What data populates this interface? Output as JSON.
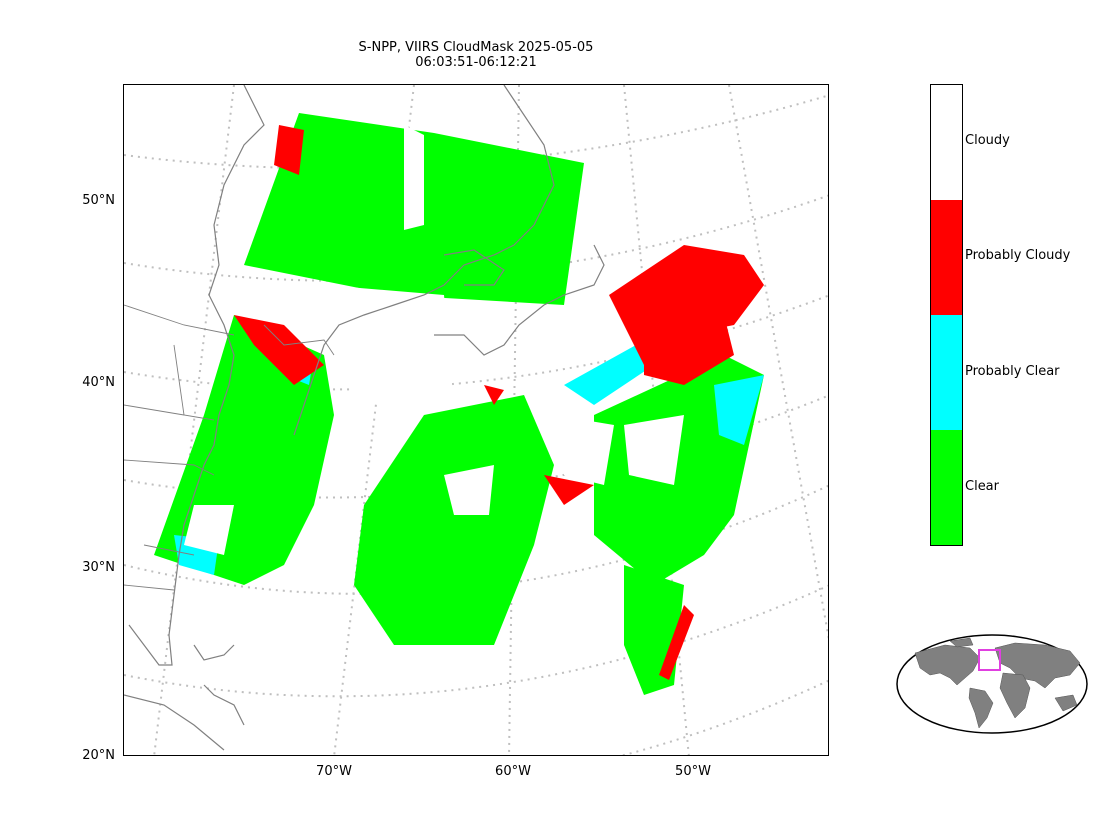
{
  "title": {
    "line1": "S-NPP, VIIRS CloudMask 2025-05-05",
    "line2": "06:03:51-06:12:21"
  },
  "map": {
    "lat_labels": [
      "50°N",
      "40°N",
      "30°N",
      "20°N"
    ],
    "lon_labels": [
      "70°W",
      "60°W",
      "50°W"
    ],
    "projection": "conic",
    "gridlines": "dotted"
  },
  "colorbar": {
    "categories": [
      {
        "label": "Cloudy",
        "color": "#ffffff"
      },
      {
        "label": "Probably Cloudy",
        "color": "#ff0000"
      },
      {
        "label": "Probably Clear",
        "color": "#00ffff"
      },
      {
        "label": "Clear",
        "color": "#00ff00"
      }
    ]
  },
  "colors": {
    "coastline": "#808080",
    "gridline": "#bfbfbf",
    "land_inset": "#808080",
    "inset_box": "#e040e0"
  }
}
